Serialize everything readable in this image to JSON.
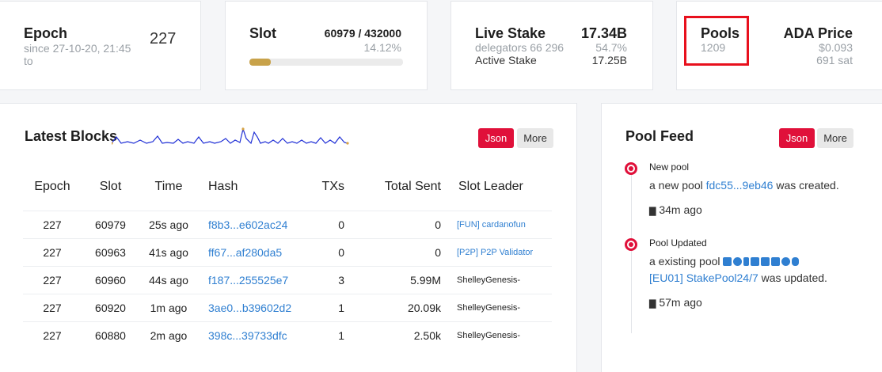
{
  "epoch": {
    "title": "Epoch",
    "value": "227",
    "since": "since 27-10-20, 21:45",
    "to": "to"
  },
  "slot": {
    "title": "Slot",
    "value": "60979 / 432000",
    "percent": "14.12%",
    "progress": 0.1412
  },
  "live_stake": {
    "title": "Live Stake",
    "value": "17.34B",
    "delegators": "delegators 66 296",
    "pct": "54.7%",
    "active_label": "Active Stake",
    "active_value": "17.25B"
  },
  "pools": {
    "title": "Pools",
    "value": "1209"
  },
  "ada_price": {
    "title": "ADA Price",
    "usd": "$0.093",
    "sat": "691 sat"
  },
  "latest_blocks": {
    "title": "Latest Blocks",
    "json_label": "Json",
    "more_label": "More",
    "columns": [
      "Epoch",
      "Slot",
      "Time",
      "Hash",
      "TXs",
      "Total Sent",
      "Slot Leader"
    ],
    "rows": [
      {
        "epoch": "227",
        "slot": "60979",
        "time": "25s ago",
        "hash": "f8b3...e602ac24",
        "txs": "0",
        "sent": "0",
        "leader": "[FUN] cardanofun",
        "leader_link": true
      },
      {
        "epoch": "227",
        "slot": "60963",
        "time": "41s ago",
        "hash": "ff67...af280da5",
        "txs": "0",
        "sent": "0",
        "leader": "[P2P] P2P Validator",
        "leader_link": true
      },
      {
        "epoch": "227",
        "slot": "60960",
        "time": "44s ago",
        "hash": "f187...255525e7",
        "txs": "3",
        "sent": "5.99M",
        "leader": "ShelleyGenesis-",
        "leader_link": false
      },
      {
        "epoch": "227",
        "slot": "60920",
        "time": "1m ago",
        "hash": "3ae0...b39602d2",
        "txs": "1",
        "sent": "20.09k",
        "leader": "ShelleyGenesis-",
        "leader_link": false
      },
      {
        "epoch": "227",
        "slot": "60880",
        "time": "2m ago",
        "hash": "398c...39733dfc",
        "txs": "1",
        "sent": "2.50k",
        "leader": "ShelleyGenesis-",
        "leader_link": false
      }
    ]
  },
  "pool_feed": {
    "title": "Pool Feed",
    "json_label": "Json",
    "more_label": "More",
    "items": [
      {
        "heading": "New pool",
        "text_before": "a new pool",
        "link": "fdc55...9eb46",
        "text_after": "was created.",
        "time": "34m ago"
      },
      {
        "heading": "Pool Updated",
        "text_before": "a existing pool",
        "link": "[EU01] StakePool24/7",
        "text_after": "was updated.",
        "time": "57m ago"
      }
    ]
  },
  "colors": {
    "accent": "#e0103a",
    "link": "#2f7fd1",
    "progress": "#c8a24a",
    "sparkline": "#1f2fd6"
  }
}
